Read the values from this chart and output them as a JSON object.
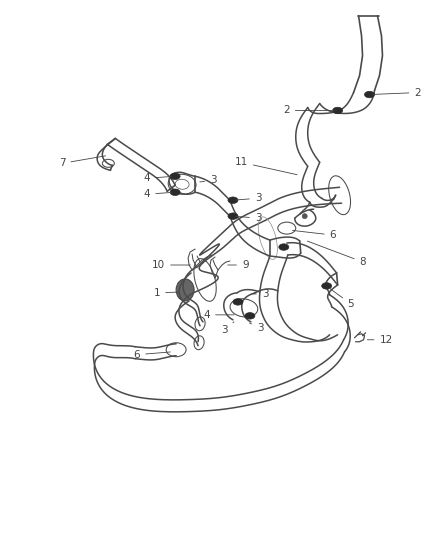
{
  "bg_color": "#ffffff",
  "line_color": "#4a4a4a",
  "label_color": "#444444",
  "fig_width": 4.38,
  "fig_height": 5.33,
  "dpi": 100
}
